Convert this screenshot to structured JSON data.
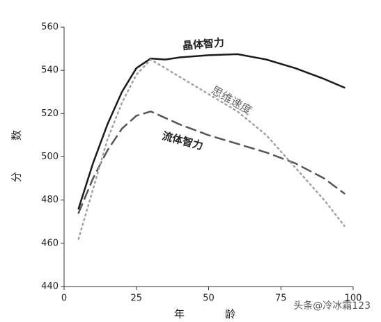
{
  "chart_data": {
    "type": "line",
    "xlabel": "年龄",
    "ylabel": "分数",
    "xlim": [
      0,
      100
    ],
    "xticks": [
      0,
      25,
      50,
      75,
      100
    ],
    "ylim": [
      440,
      560
    ],
    "yticks": [
      440,
      460,
      480,
      500,
      520,
      540,
      560
    ],
    "series": [
      {
        "name": "晶体智力",
        "color": "#1a1a1a",
        "line_style": "solid",
        "x": [
          5,
          10,
          15,
          20,
          25,
          30,
          35,
          40,
          50,
          60,
          70,
          80,
          90,
          97
        ],
        "values": [
          476,
          497,
          515,
          530,
          541,
          545.5,
          545,
          546,
          547,
          547.5,
          545,
          541,
          536,
          532
        ]
      },
      {
        "name": "流体智力",
        "color": "#555555",
        "line_style": "dashed",
        "x": [
          5,
          10,
          15,
          20,
          25,
          30,
          35,
          40,
          50,
          60,
          70,
          80,
          90,
          97
        ],
        "values": [
          474,
          490,
          503,
          513,
          519,
          521,
          518,
          515,
          510,
          506,
          502,
          497,
          490,
          483
        ]
      },
      {
        "name": "思维速度",
        "color": "#a0a0a0",
        "line_style": "dotted",
        "x": [
          5,
          10,
          15,
          20,
          25,
          30,
          40,
          50,
          60,
          70,
          80,
          90,
          97
        ],
        "values": [
          462,
          485,
          508,
          525,
          538,
          545,
          537,
          529,
          521,
          510,
          495,
          480,
          468
        ]
      }
    ],
    "watermark": "头条@冷冰霜123"
  }
}
